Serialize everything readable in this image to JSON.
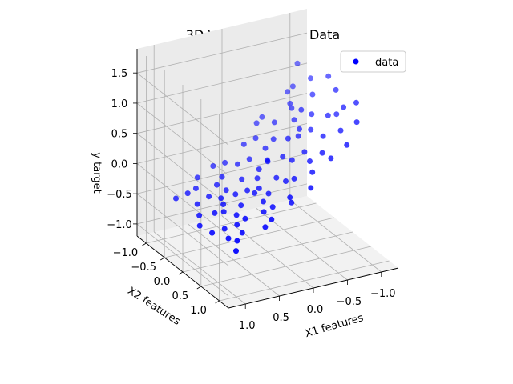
{
  "chart_data": {
    "type": "scatter",
    "projection": "3d",
    "title": "3D Visualisation of Data",
    "xlabel": "X1 features",
    "ylabel": "X2 features",
    "zlabel": "y target",
    "xlim": [
      -1.25,
      1.25
    ],
    "ylim": [
      -1.25,
      1.25
    ],
    "zlim": [
      -1.2,
      1.9
    ],
    "x_ticks": [
      -1.0,
      -0.5,
      0.0,
      0.5,
      1.0
    ],
    "y_ticks": [
      -1.0,
      -0.5,
      0.0,
      0.5,
      1.0
    ],
    "z_ticks": [
      -1.0,
      -0.5,
      0.0,
      0.5,
      1.0,
      1.5
    ],
    "x_tick_labels": [
      "−1.0",
      "−0.5",
      "0.0",
      "0.5",
      "1.0"
    ],
    "y_tick_labels": [
      "−1.0",
      "−0.5",
      "0.0",
      "0.5",
      "1.0"
    ],
    "z_tick_labels": [
      "−1.0",
      "−0.5",
      "0.0",
      "0.5",
      "1.0",
      "1.5"
    ],
    "grid": true,
    "legend": {
      "entries": [
        "data"
      ],
      "placement": "top-right"
    },
    "series": [
      {
        "name": "data",
        "color": "#0000ff",
        "points": [
          [
            -1.0,
            -0.2,
            1.35
          ],
          [
            -0.95,
            0.1,
            1.28
          ],
          [
            -0.9,
            -0.5,
            1.2
          ],
          [
            -0.85,
            0.3,
            1.0
          ],
          [
            -0.8,
            -0.8,
            0.95
          ],
          [
            -0.75,
            0.6,
            0.9
          ],
          [
            -0.7,
            -0.1,
            0.85
          ],
          [
            -0.65,
            -0.6,
            0.8
          ],
          [
            -0.6,
            0.4,
            0.75
          ],
          [
            -0.55,
            -0.3,
            0.7
          ],
          [
            -0.5,
            0.8,
            0.6
          ],
          [
            -0.45,
            0.0,
            0.6
          ],
          [
            -0.4,
            -0.9,
            0.5
          ],
          [
            -0.35,
            0.5,
            0.45
          ],
          [
            -0.3,
            -0.4,
            0.4
          ],
          [
            -0.25,
            0.2,
            0.35
          ],
          [
            -0.2,
            -0.7,
            0.3
          ],
          [
            -0.15,
            0.9,
            0.25
          ],
          [
            -0.1,
            -0.2,
            0.2
          ],
          [
            -0.05,
            0.4,
            0.15
          ],
          [
            0.0,
            -0.5,
            0.1
          ],
          [
            0.05,
            0.7,
            0.05
          ],
          [
            0.1,
            -0.1,
            0.0
          ],
          [
            0.15,
            0.3,
            -0.05
          ],
          [
            0.2,
            -0.8,
            -0.05
          ],
          [
            0.25,
            0.6,
            -0.1
          ],
          [
            0.3,
            0.0,
            -0.1
          ],
          [
            0.35,
            -0.6,
            -0.15
          ],
          [
            0.4,
            0.85,
            -0.15
          ],
          [
            0.45,
            -0.3,
            -0.2
          ],
          [
            0.5,
            0.2,
            -0.2
          ],
          [
            0.55,
            -0.9,
            -0.25
          ],
          [
            0.6,
            0.5,
            -0.25
          ],
          [
            0.65,
            -0.4,
            -0.3
          ],
          [
            0.7,
            0.1,
            -0.3
          ],
          [
            0.75,
            0.7,
            -0.35
          ],
          [
            0.8,
            -0.7,
            -0.35
          ],
          [
            0.85,
            0.4,
            -0.4
          ],
          [
            0.9,
            -0.2,
            -0.45
          ],
          [
            0.95,
            0.9,
            -0.5
          ],
          [
            1.0,
            0.0,
            -0.5
          ],
          [
            -0.98,
            0.6,
            1.3
          ],
          [
            -0.92,
            -0.9,
            1.25
          ],
          [
            -0.88,
            0.8,
            1.1
          ],
          [
            -0.82,
            -0.3,
            1.05
          ],
          [
            -0.78,
            0.2,
            0.95
          ],
          [
            -0.72,
            -0.8,
            0.88
          ],
          [
            -0.68,
            0.9,
            0.82
          ],
          [
            -0.62,
            -0.5,
            0.78
          ],
          [
            -0.58,
            0.1,
            0.72
          ],
          [
            -0.52,
            -0.1,
            0.65
          ],
          [
            -0.48,
            0.6,
            0.6
          ],
          [
            -0.42,
            -0.6,
            0.55
          ],
          [
            -0.38,
            0.3,
            0.5
          ],
          [
            -0.32,
            -0.9,
            0.42
          ],
          [
            -0.28,
            0.7,
            0.38
          ],
          [
            -0.22,
            0.0,
            0.32
          ],
          [
            -0.18,
            -0.4,
            0.28
          ],
          [
            -0.12,
            0.5,
            0.22
          ],
          [
            -0.08,
            -0.8,
            0.18
          ],
          [
            -0.02,
            0.2,
            0.12
          ],
          [
            0.02,
            -0.2,
            0.08
          ],
          [
            0.08,
            0.8,
            0.02
          ],
          [
            0.12,
            -0.6,
            0.0
          ],
          [
            0.18,
            0.1,
            -0.05
          ],
          [
            0.22,
            -0.3,
            -0.08
          ],
          [
            0.28,
            0.4,
            -0.1
          ],
          [
            0.32,
            -0.9,
            -0.12
          ],
          [
            0.38,
            0.6,
            -0.15
          ],
          [
            0.42,
            -0.1,
            -0.18
          ],
          [
            0.48,
            -0.5,
            -0.2
          ],
          [
            0.52,
            0.9,
            -0.22
          ],
          [
            0.58,
            -0.2,
            -0.25
          ],
          [
            0.62,
            0.3,
            -0.28
          ],
          [
            0.68,
            -0.7,
            -0.3
          ],
          [
            0.72,
            0.5,
            -0.32
          ],
          [
            0.78,
            0.0,
            -0.35
          ],
          [
            0.82,
            -0.4,
            -0.38
          ],
          [
            0.88,
            0.8,
            -0.4
          ],
          [
            0.92,
            -0.8,
            -0.45
          ],
          [
            0.98,
            0.3,
            -0.48
          ],
          [
            -0.6,
            -0.2,
            0.9
          ],
          [
            -0.3,
            0.0,
            0.6
          ],
          [
            0.0,
            0.0,
            0.3
          ],
          [
            0.3,
            0.2,
            -0.05
          ],
          [
            0.6,
            -0.1,
            -0.3
          ],
          [
            -0.9,
            0.4,
            1.15
          ],
          [
            0.9,
            0.6,
            -0.45
          ]
        ]
      }
    ]
  }
}
